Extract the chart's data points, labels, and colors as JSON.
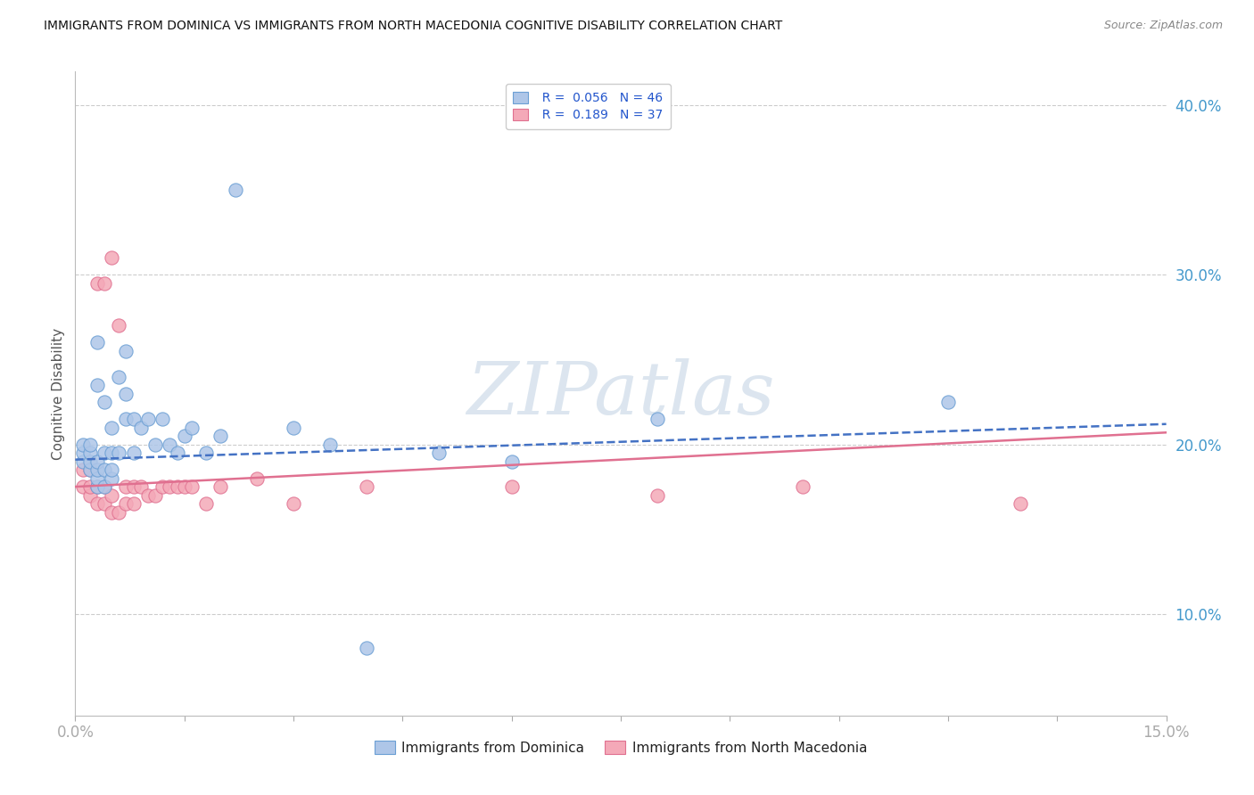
{
  "title": "IMMIGRANTS FROM DOMINICA VS IMMIGRANTS FROM NORTH MACEDONIA COGNITIVE DISABILITY CORRELATION CHART",
  "source": "Source: ZipAtlas.com",
  "ylabel": "Cognitive Disability",
  "xlim": [
    0.0,
    0.15
  ],
  "ylim": [
    0.04,
    0.42
  ],
  "xticks": [
    0.0,
    0.015,
    0.03,
    0.045,
    0.06,
    0.075,
    0.09,
    0.105,
    0.12,
    0.135,
    0.15
  ],
  "xticklabels": [
    "0.0%",
    "",
    "",
    "",
    "",
    "",
    "",
    "",
    "",
    "",
    "15.0%"
  ],
  "yticks": [
    0.1,
    0.2,
    0.3,
    0.4
  ],
  "yticklabels": [
    "10.0%",
    "20.0%",
    "30.0%",
    "40.0%"
  ],
  "series1_label": "Immigrants from Dominica",
  "series1_color": "#aec6e8",
  "series1_edge_color": "#6b9fd4",
  "series1_R": 0.056,
  "series1_N": 46,
  "series1_line_color": "#4472c4",
  "series2_label": "Immigrants from North Macedonia",
  "series2_color": "#f4a9b8",
  "series2_edge_color": "#e07090",
  "series2_R": 0.189,
  "series2_N": 37,
  "series2_line_color": "#e07090",
  "watermark": "ZIPatlas",
  "watermark_color": "#c5d5e5",
  "background_color": "#ffffff",
  "grid_color": "#cccccc",
  "legend_R_color": "#2255cc",
  "series1_x": [
    0.001,
    0.001,
    0.001,
    0.002,
    0.002,
    0.002,
    0.002,
    0.003,
    0.003,
    0.003,
    0.003,
    0.003,
    0.003,
    0.004,
    0.004,
    0.004,
    0.004,
    0.005,
    0.005,
    0.005,
    0.005,
    0.006,
    0.006,
    0.007,
    0.007,
    0.007,
    0.008,
    0.008,
    0.009,
    0.01,
    0.011,
    0.012,
    0.013,
    0.014,
    0.015,
    0.016,
    0.018,
    0.02,
    0.022,
    0.03,
    0.035,
    0.04,
    0.05,
    0.06,
    0.08,
    0.12
  ],
  "series1_y": [
    0.19,
    0.195,
    0.2,
    0.185,
    0.19,
    0.195,
    0.2,
    0.175,
    0.18,
    0.185,
    0.19,
    0.235,
    0.26,
    0.175,
    0.185,
    0.195,
    0.225,
    0.18,
    0.185,
    0.195,
    0.21,
    0.195,
    0.24,
    0.215,
    0.23,
    0.255,
    0.195,
    0.215,
    0.21,
    0.215,
    0.2,
    0.215,
    0.2,
    0.195,
    0.205,
    0.21,
    0.195,
    0.205,
    0.35,
    0.21,
    0.2,
    0.08,
    0.195,
    0.19,
    0.215,
    0.225
  ],
  "series2_x": [
    0.001,
    0.001,
    0.002,
    0.002,
    0.002,
    0.003,
    0.003,
    0.003,
    0.004,
    0.004,
    0.004,
    0.005,
    0.005,
    0.005,
    0.006,
    0.006,
    0.007,
    0.007,
    0.008,
    0.008,
    0.009,
    0.01,
    0.011,
    0.012,
    0.013,
    0.014,
    0.015,
    0.016,
    0.018,
    0.02,
    0.025,
    0.03,
    0.04,
    0.06,
    0.08,
    0.1,
    0.13
  ],
  "series2_y": [
    0.175,
    0.185,
    0.17,
    0.175,
    0.185,
    0.165,
    0.175,
    0.295,
    0.165,
    0.175,
    0.295,
    0.16,
    0.17,
    0.31,
    0.16,
    0.27,
    0.165,
    0.175,
    0.165,
    0.175,
    0.175,
    0.17,
    0.17,
    0.175,
    0.175,
    0.175,
    0.175,
    0.175,
    0.165,
    0.175,
    0.18,
    0.165,
    0.175,
    0.175,
    0.17,
    0.175,
    0.165
  ]
}
